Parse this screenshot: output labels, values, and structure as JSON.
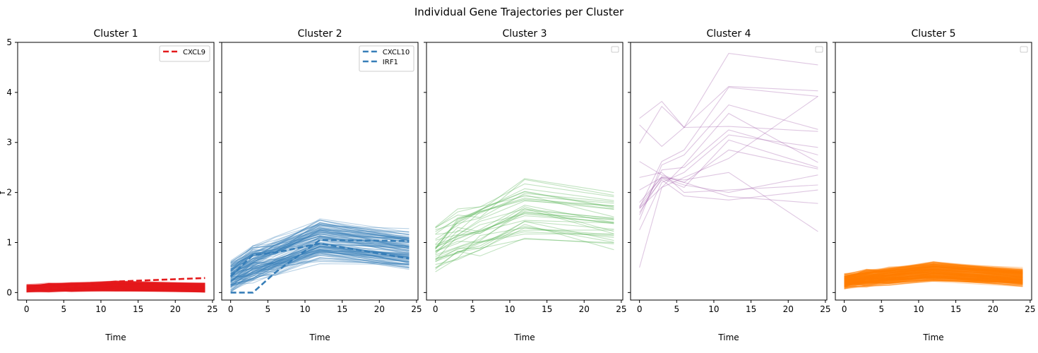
{
  "figure": {
    "suptitle": "Individual Gene Trajectories per Cluster",
    "ylabel_fragment": "f"
  },
  "chart_data": [
    {
      "type": "line",
      "title": "Cluster 1",
      "xlabel": "Time",
      "xlim": [
        -1.2,
        25.2
      ],
      "ylim": [
        -0.15,
        5.0
      ],
      "xticks": [
        0,
        5,
        10,
        15,
        20,
        25
      ],
      "yticks": [
        0,
        1,
        2,
        3,
        4,
        5
      ],
      "color": "#e41a1c",
      "line_opacity": 0.35,
      "time_points": [
        0,
        3,
        6,
        12,
        24
      ],
      "bundle": {
        "count": 200,
        "start_mean": 0.08,
        "peak_mean": 0.13,
        "end_mean": 0.09,
        "spread": 0.07,
        "max_value": 0.38
      },
      "highlighted": [
        {
          "name": "CXCL9",
          "values": [
            0.04,
            0.08,
            0.12,
            0.22,
            0.29
          ]
        }
      ],
      "legend": {
        "location": "upper-right",
        "entries": [
          "CXCL9"
        ]
      }
    },
    {
      "type": "line",
      "title": "Cluster 2",
      "xlabel": "Time",
      "xlim": [
        -1.2,
        25.2
      ],
      "ylim": [
        -0.15,
        5.0
      ],
      "xticks": [
        0,
        5,
        10,
        15,
        20,
        25
      ],
      "yticks": [
        0,
        1,
        2,
        3,
        4,
        5
      ],
      "color": "#377eb8",
      "line_opacity": 0.35,
      "time_points": [
        0,
        3,
        6,
        12,
        24
      ],
      "bundle": {
        "count": 120,
        "start_mean": 0.32,
        "peak_mean": 1.05,
        "end_mean": 0.85,
        "spread": 0.3,
        "max_value": 1.8
      },
      "highlighted": [
        {
          "name": "CXCL10",
          "values": [
            0.0,
            0.0,
            0.4,
            1.05,
            1.03
          ]
        },
        {
          "name": "IRF1",
          "values": [
            0.32,
            0.75,
            0.8,
            0.98,
            0.68
          ]
        }
      ],
      "legend": {
        "location": "upper-right",
        "entries": [
          "CXCL10",
          "IRF1"
        ]
      }
    },
    {
      "type": "line",
      "title": "Cluster 3",
      "xlabel": "Time",
      "xlim": [
        -1.2,
        25.2
      ],
      "ylim": [
        -0.15,
        5.0
      ],
      "xticks": [
        0,
        5,
        10,
        15,
        20,
        25
      ],
      "yticks": [
        0,
        1,
        2,
        3,
        4,
        5
      ],
      "color": "#4daf4a",
      "line_opacity": 0.35,
      "time_points": [
        0,
        3,
        6,
        12,
        24
      ],
      "bundle": {
        "count": 35,
        "start_mean": 0.9,
        "peak_mean": 1.7,
        "end_mean": 1.5,
        "spread": 0.45,
        "max_value": 2.55
      },
      "highlighted": [],
      "legend": {
        "location": "upper-right",
        "entries": []
      }
    },
    {
      "type": "line",
      "title": "Cluster 4",
      "xlabel": "Time",
      "xlim": [
        -1.2,
        25.2
      ],
      "ylim": [
        -0.15,
        5.0
      ],
      "xticks": [
        0,
        5,
        10,
        15,
        20,
        25
      ],
      "yticks": [
        0,
        1,
        2,
        3,
        4,
        5
      ],
      "color": "#984ea3",
      "line_opacity": 0.32,
      "time_points": [
        0,
        3,
        6,
        12,
        24
      ],
      "series": [
        {
          "values": [
            3.48,
            3.82,
            3.3,
            4.78,
            4.55
          ]
        },
        {
          "values": [
            2.98,
            3.72,
            3.3,
            4.12,
            4.03
          ]
        },
        {
          "values": [
            3.35,
            2.92,
            3.3,
            3.32,
            3.22
          ]
        },
        {
          "values": [
            2.62,
            2.35,
            2.2,
            2.85,
            2.47
          ]
        },
        {
          "values": [
            1.72,
            2.32,
            2.2,
            1.92,
            1.78
          ]
        },
        {
          "values": [
            1.45,
            2.55,
            2.75,
            3.75,
            3.26
          ]
        },
        {
          "values": [
            1.68,
            2.25,
            1.93,
            1.85,
            2.05
          ]
        },
        {
          "values": [
            1.25,
            2.2,
            2.4,
            3.15,
            2.9
          ]
        },
        {
          "values": [
            0.5,
            2.1,
            2.55,
            3.58,
            2.6
          ]
        },
        {
          "values": [
            1.68,
            2.1,
            2.3,
            2.68,
            3.92
          ]
        },
        {
          "values": [
            1.7,
            2.62,
            2.85,
            4.1,
            3.92
          ]
        },
        {
          "values": [
            2.05,
            2.3,
            2.25,
            2.4,
            1.22
          ]
        },
        {
          "values": [
            1.55,
            2.45,
            2.5,
            3.25,
            2.75
          ]
        },
        {
          "values": [
            1.8,
            2.3,
            2.15,
            2.0,
            2.35
          ]
        },
        {
          "values": [
            2.3,
            2.4,
            2.0,
            2.05,
            2.15
          ]
        },
        {
          "values": [
            1.6,
            2.28,
            2.1,
            3.05,
            2.5
          ]
        }
      ],
      "highlighted": [],
      "legend": {
        "location": "upper-right",
        "entries": []
      }
    },
    {
      "type": "line",
      "title": "Cluster 5",
      "xlabel": "Time",
      "xlim": [
        -1.2,
        25.2
      ],
      "ylim": [
        -0.15,
        5.0
      ],
      "xticks": [
        0,
        5,
        10,
        15,
        20,
        25
      ],
      "yticks": [
        0,
        1,
        2,
        3,
        4,
        5
      ],
      "color": "#ff7f00",
      "line_opacity": 0.35,
      "time_points": [
        0,
        3,
        6,
        12,
        24
      ],
      "bundle": {
        "count": 220,
        "start_mean": 0.22,
        "peak_mean": 0.42,
        "end_mean": 0.3,
        "spread": 0.14,
        "max_value": 1.02
      },
      "highlighted": [],
      "legend": {
        "location": "upper-right",
        "entries": []
      }
    }
  ]
}
